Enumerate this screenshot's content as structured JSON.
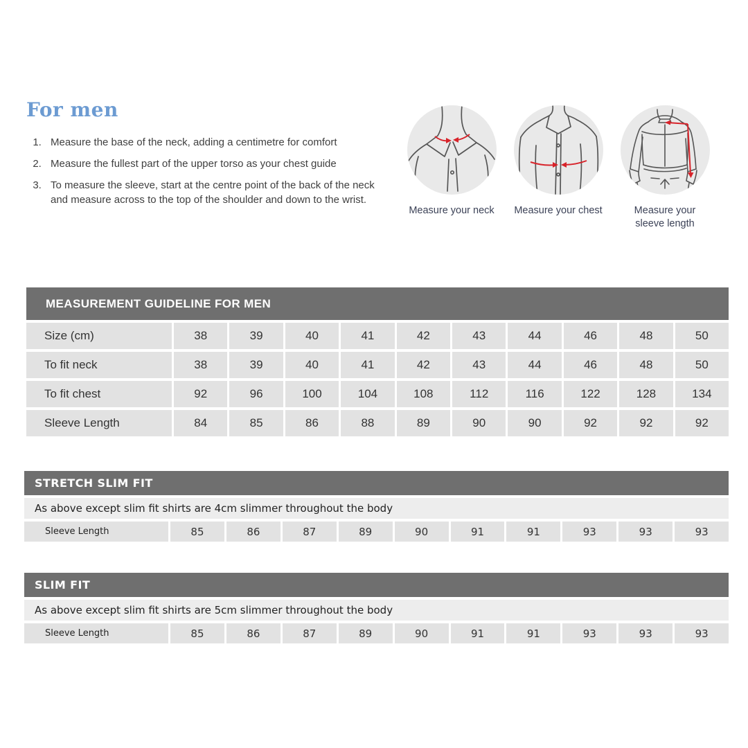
{
  "intro": {
    "heading": "For men",
    "steps": [
      "Measure the base of the neck, adding a centimetre for comfort",
      "Measure the fullest part of the upper torso as your chest guide",
      "To measure the sleeve, start at the centre point of the back of the neck and measure across to the top of the shoulder and down to the wrist."
    ]
  },
  "figures": [
    {
      "icon": "neck-measure-illustration",
      "caption": "Measure your neck"
    },
    {
      "icon": "chest-measure-illustration",
      "caption": "Measure your chest"
    },
    {
      "icon": "sleeve-measure-illustration",
      "caption": "Measure your sleeve length"
    }
  ],
  "main_table": {
    "title": "MEASUREMENT GUIDELINE FOR MEN",
    "rows": [
      {
        "label": "Size (cm)",
        "values": [
          "38",
          "39",
          "40",
          "41",
          "42",
          "43",
          "44",
          "46",
          "48",
          "50"
        ]
      },
      {
        "label": "To fit neck",
        "values": [
          "38",
          "39",
          "40",
          "41",
          "42",
          "43",
          "44",
          "46",
          "48",
          "50"
        ]
      },
      {
        "label": "To fit chest",
        "values": [
          "92",
          "96",
          "100",
          "104",
          "108",
          "112",
          "116",
          "122",
          "128",
          "134"
        ]
      },
      {
        "label": "Sleeve Length",
        "values": [
          "84",
          "85",
          "86",
          "88",
          "89",
          "90",
          "90",
          "92",
          "92",
          "92"
        ]
      }
    ]
  },
  "fit_sections": [
    {
      "title": "STRETCH SLIM FIT",
      "description": "As above except slim fit shirts are 4cm slimmer throughout the body",
      "row": {
        "label": "Sleeve Length",
        "values": [
          "85",
          "86",
          "87",
          "89",
          "90",
          "91",
          "91",
          "93",
          "93",
          "93"
        ]
      }
    },
    {
      "title": "SLIM FIT",
      "description": "As above except slim fit shirts are 5cm slimmer throughout the body",
      "row": {
        "label": "Sleeve Length",
        "values": [
          "85",
          "86",
          "87",
          "89",
          "90",
          "91",
          "91",
          "93",
          "93",
          "93"
        ]
      }
    }
  ],
  "colors": {
    "heading_blue": "#6c9bd2",
    "banner_gray": "#6f6f6f",
    "cell_gray": "#e2e2e2",
    "strip_gray": "#ededed",
    "caption_navy": "#3c4257",
    "arrow_red": "#d8232a",
    "body_text": "#3f3f3f"
  }
}
